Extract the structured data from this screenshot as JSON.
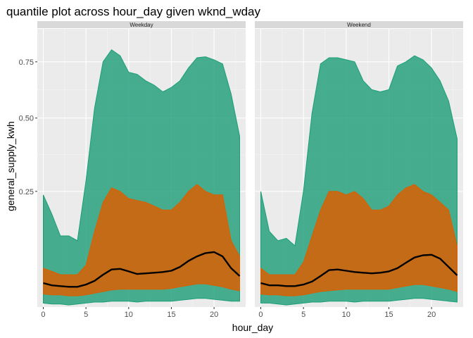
{
  "chart_data": {
    "type": "area",
    "title": "quantile plot across hour_day given wknd_wday",
    "xlabel": "hour_day",
    "ylabel": "general_supply_kwh",
    "y_scale": "sqrt",
    "xlim": [
      -0.7,
      23.7
    ],
    "ylim": [
      0.03,
      0.92
    ],
    "x_ticks": [
      0,
      5,
      10,
      15,
      20
    ],
    "x_tick_labels": [
      "0",
      "5",
      "10",
      "15",
      "20"
    ],
    "y_ticks": [
      0.25,
      0.5,
      0.75
    ],
    "y_tick_labels": [
      "0.25",
      "0.50",
      "0.75"
    ],
    "grid": true,
    "legend": "none",
    "colors": {
      "panel_bg": "#ebebeb",
      "strip_bg": "#d9d9d9",
      "grid_major": "#ffffff",
      "outer_band": "#1b9e77",
      "inner_band": "#d95f02",
      "median_line": "#000000"
    },
    "facets": [
      {
        "label": "Weekday",
        "x": [
          0,
          1,
          2,
          3,
          4,
          5,
          6,
          7,
          8,
          9,
          10,
          11,
          12,
          13,
          14,
          15,
          16,
          17,
          18,
          19,
          20,
          21,
          22,
          23
        ],
        "outer_upper": [
          0.24,
          0.19,
          0.14,
          0.14,
          0.13,
          0.28,
          0.54,
          0.75,
          0.81,
          0.78,
          0.7,
          0.69,
          0.66,
          0.64,
          0.61,
          0.63,
          0.66,
          0.72,
          0.77,
          0.775,
          0.76,
          0.74,
          0.6,
          0.43
        ],
        "inner_upper": [
          0.08,
          0.075,
          0.07,
          0.07,
          0.07,
          0.085,
          0.15,
          0.22,
          0.26,
          0.25,
          0.23,
          0.225,
          0.22,
          0.21,
          0.2,
          0.2,
          0.22,
          0.25,
          0.27,
          0.25,
          0.24,
          0.24,
          0.13,
          0.1
        ],
        "median": [
          0.058,
          0.055,
          0.054,
          0.053,
          0.053,
          0.056,
          0.061,
          0.07,
          0.078,
          0.079,
          0.075,
          0.071,
          0.072,
          0.073,
          0.074,
          0.076,
          0.082,
          0.092,
          0.1,
          0.106,
          0.108,
          0.1,
          0.08,
          0.068
        ],
        "inner_lower": [
          0.044,
          0.043,
          0.043,
          0.042,
          0.042,
          0.043,
          0.045,
          0.047,
          0.049,
          0.05,
          0.05,
          0.05,
          0.05,
          0.05,
          0.05,
          0.051,
          0.053,
          0.055,
          0.057,
          0.057,
          0.055,
          0.053,
          0.05,
          0.048
        ],
        "outer_lower": [
          0.034,
          0.033,
          0.033,
          0.032,
          0.033,
          0.034,
          0.035,
          0.035,
          0.036,
          0.036,
          0.036,
          0.035,
          0.036,
          0.036,
          0.036,
          0.036,
          0.037,
          0.038,
          0.039,
          0.039,
          0.038,
          0.037,
          0.036,
          0.036
        ]
      },
      {
        "label": "Weekend",
        "x": [
          0,
          1,
          2,
          3,
          4,
          5,
          6,
          7,
          8,
          9,
          10,
          11,
          12,
          13,
          14,
          15,
          16,
          17,
          18,
          19,
          20,
          21,
          22,
          23
        ],
        "outer_upper": [
          0.25,
          0.15,
          0.13,
          0.135,
          0.12,
          0.25,
          0.52,
          0.74,
          0.77,
          0.77,
          0.76,
          0.75,
          0.66,
          0.62,
          0.61,
          0.62,
          0.73,
          0.75,
          0.78,
          0.76,
          0.72,
          0.66,
          0.57,
          0.42
        ],
        "inner_upper": [
          0.08,
          0.07,
          0.07,
          0.07,
          0.07,
          0.09,
          0.14,
          0.2,
          0.25,
          0.25,
          0.24,
          0.25,
          0.23,
          0.2,
          0.2,
          0.21,
          0.24,
          0.26,
          0.27,
          0.25,
          0.24,
          0.22,
          0.2,
          0.12
        ],
        "median": [
          0.058,
          0.055,
          0.055,
          0.054,
          0.054,
          0.056,
          0.06,
          0.068,
          0.077,
          0.078,
          0.076,
          0.074,
          0.073,
          0.072,
          0.073,
          0.075,
          0.08,
          0.089,
          0.098,
          0.102,
          0.103,
          0.096,
          0.082,
          0.069
        ],
        "inner_lower": [
          0.044,
          0.043,
          0.043,
          0.042,
          0.042,
          0.043,
          0.045,
          0.047,
          0.048,
          0.049,
          0.05,
          0.05,
          0.05,
          0.05,
          0.05,
          0.05,
          0.052,
          0.054,
          0.056,
          0.056,
          0.054,
          0.052,
          0.05,
          0.047
        ],
        "outer_lower": [
          0.034,
          0.034,
          0.033,
          0.032,
          0.033,
          0.034,
          0.035,
          0.035,
          0.036,
          0.036,
          0.036,
          0.035,
          0.036,
          0.036,
          0.036,
          0.036,
          0.037,
          0.038,
          0.039,
          0.039,
          0.038,
          0.037,
          0.036,
          0.035
        ]
      }
    ]
  }
}
